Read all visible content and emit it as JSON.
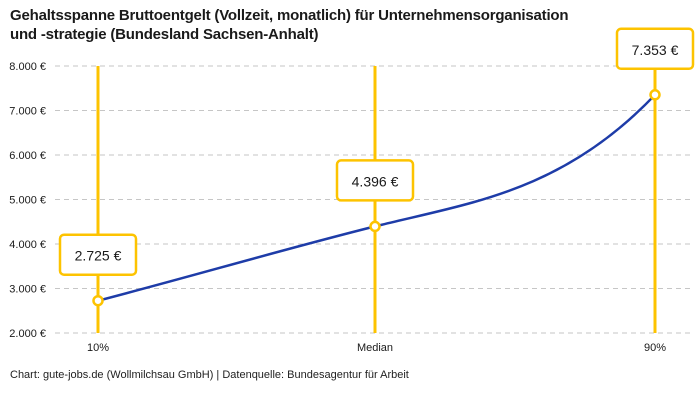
{
  "header": {
    "title_line1": "Gehaltsspanne Bruttoentgelt (Vollzeit, monatlich) für Unternehmensorganisation",
    "title_line2": "und -strategie (Bundesland Sachsen-Anhalt)"
  },
  "footer": {
    "credit": "Chart: gute-jobs.de (Wollmilchsau GmbH) | Datenquelle: Bundesagentur für Arbeit"
  },
  "chart_data": {
    "type": "line",
    "title": "Gehaltsspanne Bruttoentgelt (Vollzeit, monatlich) für Unternehmensorganisation und -strategie (Bundesland Sachsen-Anhalt)",
    "x_categories": [
      "10%",
      "Median",
      "90%"
    ],
    "points": [
      {
        "label": "10%",
        "value": 2725,
        "value_label": "2.725 €"
      },
      {
        "label": "Median",
        "value": 4396,
        "value_label": "4.396 €"
      },
      {
        "label": "90%",
        "value": 7353,
        "value_label": "7.353 €"
      }
    ],
    "y_axis": {
      "min": 2000,
      "max": 8000,
      "tick_step": 1000,
      "tick_values": [
        2000,
        3000,
        4000,
        5000,
        6000,
        7000,
        8000
      ],
      "tick_labels": [
        "2.000 €",
        "3.000 €",
        "4.000 €",
        "5.000 €",
        "6.000 €",
        "7.000 €",
        "8.000 €"
      ]
    },
    "grid": "horizontal-dashed",
    "legend": "none",
    "colors": {
      "line": "#1e3ca8",
      "highlight": "#fdc300",
      "grid": "#c6c6c6",
      "text": "#1a1a1a",
      "box_fill": "#ffffff"
    }
  }
}
